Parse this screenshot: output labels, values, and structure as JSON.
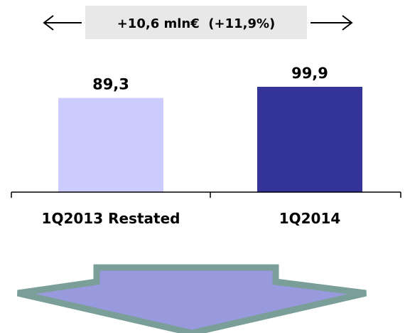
{
  "chart_data": {
    "type": "bar",
    "categories": [
      "1Q2013 Restated",
      "1Q2014"
    ],
    "values": [
      89.3,
      99.9
    ],
    "value_labels": [
      "89,3",
      "99,9"
    ],
    "annotation": "+10,6 mln€  (+11,9%)",
    "colors": {
      "1Q2013 Restated": "#ccccff",
      "1Q2014": "#333399"
    },
    "arrow_colors": {
      "fill": "#9999dd",
      "outline": "#7a9f99"
    },
    "ylim": [
      0,
      99.9
    ]
  }
}
